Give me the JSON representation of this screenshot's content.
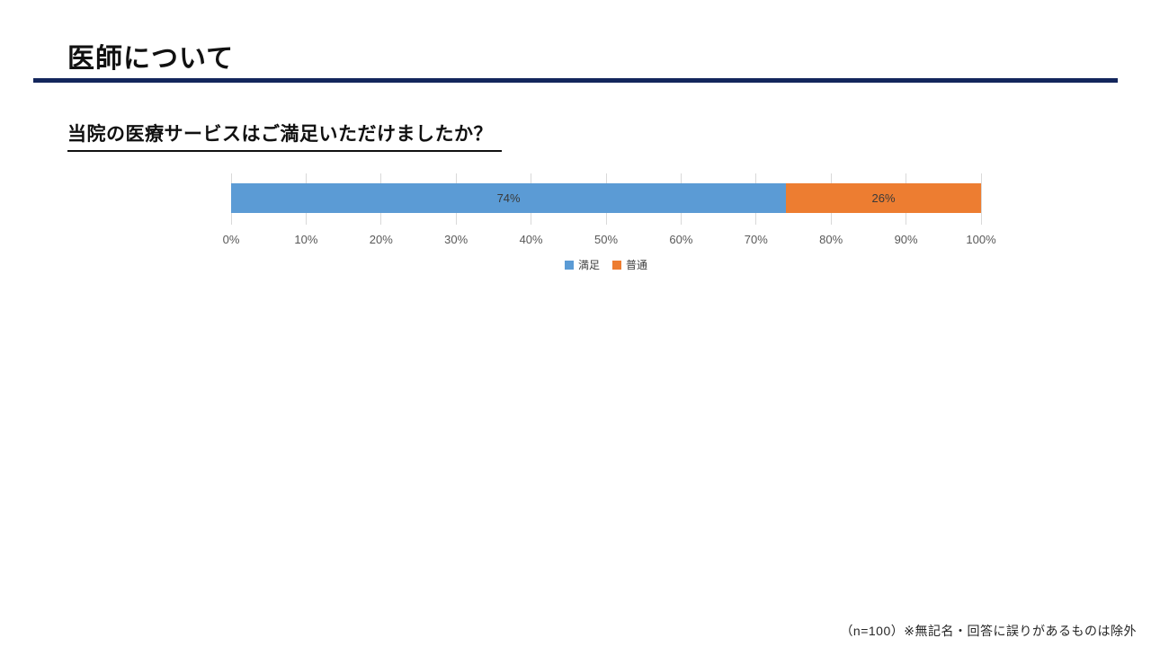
{
  "slide": {
    "title": "医師について",
    "question": "当院の医療サービスはご満足いただけましたか？",
    "footnote": "（n=100）※無記名・回答に誤りがあるものは除外"
  },
  "colors": {
    "title_rule": "#13265c",
    "satisfied_blue": "#5B9BD5",
    "normal_orange": "#ED7D31",
    "gridline": "#d9d9d9"
  },
  "chart_data": {
    "type": "bar",
    "orientation": "horizontal",
    "stacked": true,
    "title": "",
    "categories": [
      ""
    ],
    "series": [
      {
        "name": "満足",
        "values": [
          74
        ],
        "color": "#5B9BD5",
        "data_label": "74%"
      },
      {
        "name": "普通",
        "values": [
          26
        ],
        "color": "#ED7D31",
        "data_label": "26%"
      }
    ],
    "xlim": [
      0,
      100
    ],
    "x_ticks": [
      "0%",
      "10%",
      "20%",
      "30%",
      "40%",
      "50%",
      "60%",
      "70%",
      "80%",
      "90%",
      "100%"
    ],
    "grid": true,
    "legend_position": "bottom"
  }
}
